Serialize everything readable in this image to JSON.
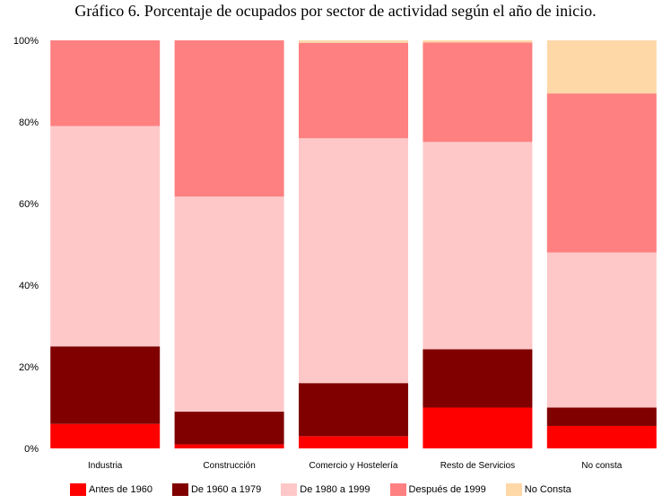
{
  "chart_data": {
    "type": "bar",
    "stacked": true,
    "title": "Gráfico 6. Porcentaje de ocupados por sector de actividad según el año de inicio.",
    "xlabel": "",
    "ylabel": "",
    "ylim": [
      0,
      100
    ],
    "ytick_labels": [
      "0%",
      "20%",
      "40%",
      "60%",
      "80%",
      "100%"
    ],
    "categories": [
      "Industria",
      "Construcción",
      "Comercio y Hostelería",
      "Resto de Servicios",
      "No consta"
    ],
    "series": [
      {
        "name": "Antes de 1960",
        "color": "#ff0000",
        "values": [
          6,
          1,
          3,
          10,
          5.5
        ]
      },
      {
        "name": "De 1960 a 1979",
        "color": "#800000",
        "values": [
          19,
          8,
          13,
          14.3,
          4.5
        ]
      },
      {
        "name": "De 1980 a 1999",
        "color": "#ffc8c8",
        "values": [
          54,
          52.7,
          60,
          50.8,
          38
        ]
      },
      {
        "name": "Después de 1999",
        "color": "#ff8080",
        "values": [
          21,
          38.3,
          23.4,
          24.4,
          39
        ]
      },
      {
        "name": "No Consta",
        "color": "#ffd8a8",
        "values": [
          0,
          0,
          0.6,
          0.5,
          13
        ]
      }
    ],
    "grid": true,
    "legend_position": "bottom"
  }
}
